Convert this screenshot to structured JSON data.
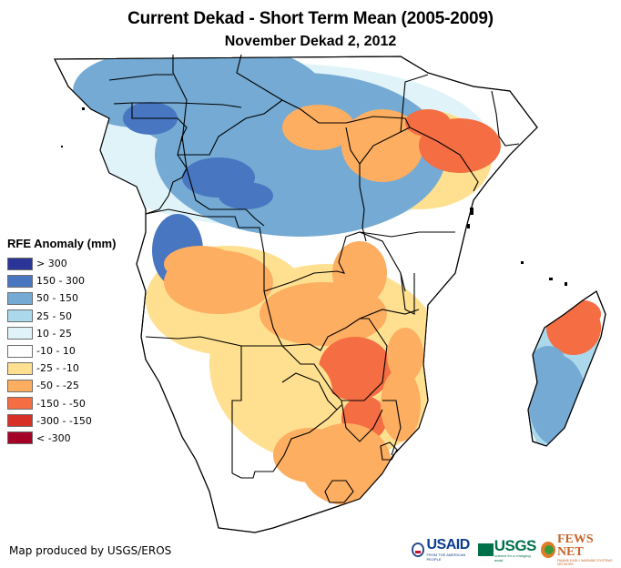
{
  "header": {
    "title": "Current Dekad - Short Term Mean (2005-2009)",
    "subtitle": "November Dekad 2, 2012"
  },
  "legend": {
    "title": "RFE Anomaly (mm)",
    "classes": [
      {
        "label": "> 300",
        "color": "#2b3598"
      },
      {
        "label": "150 - 300",
        "color": "#4876c0"
      },
      {
        "label": "50 - 150",
        "color": "#74aad3"
      },
      {
        "label": "25 - 50",
        "color": "#abd8ea"
      },
      {
        "label": "10 - 25",
        "color": "#e0f3f8"
      },
      {
        "label": "-10 - 10",
        "color": "#ffffff"
      },
      {
        "label": "-25 - -10",
        "color": "#fee090"
      },
      {
        "label": "-50 - -25",
        "color": "#fdae61"
      },
      {
        "label": "-150 - -50",
        "color": "#f46d43"
      },
      {
        "label": "-300 - -150",
        "color": "#d73027"
      },
      {
        "label": "< -300",
        "color": "#a50026"
      }
    ]
  },
  "map": {
    "region": "Central and Southern Africa, Madagascar",
    "land_color": "#ffffff",
    "border_color": "#000000",
    "anomaly_areas": [
      {
        "name": "Central Africa / Congo Basin",
        "class": "50 - 150"
      },
      {
        "name": "Gabon-Cameroon",
        "class": "150 - 300"
      },
      {
        "name": "Angola (north)",
        "class": "150 - 300"
      },
      {
        "name": "Angola (central)",
        "class": "-50 - -25"
      },
      {
        "name": "Zambia",
        "class": "-50 - -25"
      },
      {
        "name": "Zimbabwe",
        "class": "-150 - -50"
      },
      {
        "name": "Mozambique (south)",
        "class": "-50 - -25"
      },
      {
        "name": "Tanzania (north)",
        "class": "-50 - -25"
      },
      {
        "name": "Kenya",
        "class": "-150 - -50"
      },
      {
        "name": "Botswana",
        "class": "-25 - -10"
      },
      {
        "name": "South Africa (east)",
        "class": "-50 - -25"
      },
      {
        "name": "Namibia / South Africa (west)",
        "class": "-10 - 10"
      },
      {
        "name": "Madagascar (north)",
        "class": "-150 - -50"
      },
      {
        "name": "Madagascar (south)",
        "class": "50 - 150"
      }
    ]
  },
  "footer": {
    "credit": "Map produced by USGS/EROS",
    "logos": {
      "usaid": "USAID",
      "usaid_tagline": "FROM THE AMERICAN PEOPLE",
      "usgs": "USGS",
      "usgs_tagline": "science for a changing world",
      "fewsnet": "FEWS NET",
      "fewsnet_tagline": "FAMINE EARLY WARNING SYSTEMS NETWORK"
    }
  }
}
